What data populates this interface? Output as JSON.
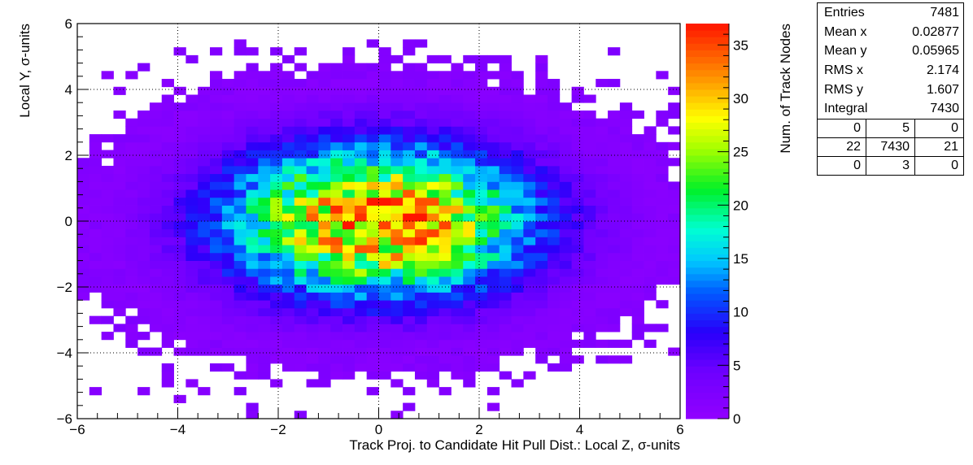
{
  "chart_data": {
    "type": "heatmap",
    "xlabel": "Track Proj. to Candidate Hit Pull Dist.: Local Z, σ-units",
    "ylabel": "Local Y, σ-units",
    "zlabel": "Num. of Track Nodes",
    "xlim": [
      -6,
      6
    ],
    "ylim": [
      -6,
      6
    ],
    "zlim": [
      0,
      37
    ],
    "x_ticks": [
      -6,
      -4,
      -2,
      0,
      2,
      4,
      6
    ],
    "y_ticks": [
      -6,
      -4,
      -2,
      0,
      2,
      4,
      6
    ],
    "z_ticks": [
      0,
      5,
      10,
      15,
      20,
      25,
      30,
      35
    ],
    "bins": [
      50,
      50
    ],
    "grid": true,
    "distribution": {
      "peak_at": [
        0,
        0
      ],
      "peak_value": 37,
      "sigma_x": 2.17,
      "sigma_y": 1.61,
      "entries": 7481
    }
  },
  "stats": {
    "rows": [
      {
        "label": "Entries",
        "value": "7481"
      },
      {
        "label": "Mean x",
        "value": "0.02877"
      },
      {
        "label": "Mean y",
        "value": "0.05965"
      },
      {
        "label": "RMS x",
        "value": "2.174"
      },
      {
        "label": "RMS y",
        "value": "1.607"
      },
      {
        "label": "Integral",
        "value": "7430"
      }
    ],
    "overflow": [
      [
        "0",
        "5",
        "0"
      ],
      [
        "22",
        "7430",
        "21"
      ],
      [
        "0",
        "3",
        "0"
      ]
    ]
  }
}
